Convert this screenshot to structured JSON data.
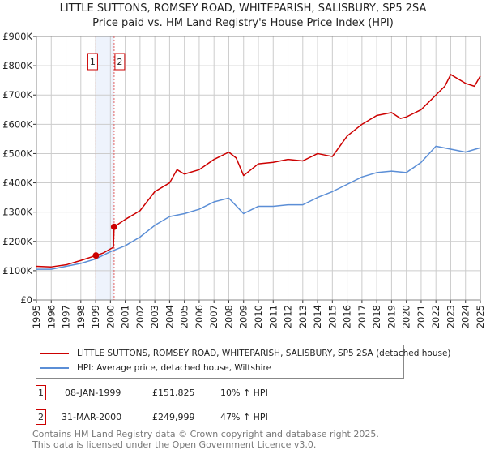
{
  "title": "LITTLE SUTTONS, ROMSEY ROAD, WHITEPARISH, SALISBURY, SP5 2SA",
  "subtitle": "Price paid vs. HM Land Registry's House Price Index (HPI)",
  "chart_data": {
    "type": "line",
    "title": "LITTLE SUTTONS, ROMSEY ROAD, WHITEPARISH, SALISBURY, SP5 2SA",
    "xlim": [
      1995,
      2025
    ],
    "ylim": [
      0,
      900000
    ],
    "x_ticks": [
      "1995",
      "1996",
      "1997",
      "1998",
      "1999",
      "2000",
      "2001",
      "2002",
      "2003",
      "2004",
      "2005",
      "2006",
      "2007",
      "2008",
      "2009",
      "2010",
      "2011",
      "2012",
      "2013",
      "2014",
      "2015",
      "2016",
      "2017",
      "2018",
      "2019",
      "2020",
      "2021",
      "2022",
      "2023",
      "2024",
      "2025"
    ],
    "y_ticks": [
      {
        "v": 0,
        "label": "£0"
      },
      {
        "v": 100000,
        "label": "£100K"
      },
      {
        "v": 200000,
        "label": "£200K"
      },
      {
        "v": 300000,
        "label": "£300K"
      },
      {
        "v": 400000,
        "label": "£400K"
      },
      {
        "v": 500000,
        "label": "£500K"
      },
      {
        "v": 600000,
        "label": "£600K"
      },
      {
        "v": 700000,
        "label": "£700K"
      },
      {
        "v": 800000,
        "label": "£800K"
      },
      {
        "v": 900000,
        "label": "£900K"
      }
    ],
    "grid": true,
    "series": [
      {
        "name": "LITTLE SUTTONS, ROMSEY ROAD, WHITEPARISH, SALISBURY, SP5 2SA (detached house)",
        "color": "#cc0000",
        "x": [
          1995,
          1996,
          1997,
          1998,
          1999.02,
          1999.5,
          2000.2,
          2000.25,
          2001,
          2002,
          2003,
          2004,
          2004.5,
          2005,
          2006,
          2007,
          2008,
          2008.5,
          2009,
          2010,
          2011,
          2012,
          2013,
          2014,
          2015,
          2016,
          2017,
          2018,
          2019,
          2019.6,
          2020,
          2021,
          2022,
          2022.6,
          2023,
          2023.5,
          2024,
          2024.6,
          2025
        ],
        "y": [
          115000,
          113000,
          120000,
          135000,
          151825,
          160000,
          180000,
          249999,
          275000,
          305000,
          370000,
          400000,
          445000,
          430000,
          445000,
          480000,
          505000,
          485000,
          425000,
          465000,
          470000,
          480000,
          475000,
          500000,
          490000,
          560000,
          600000,
          630000,
          640000,
          620000,
          625000,
          650000,
          700000,
          730000,
          770000,
          755000,
          740000,
          730000,
          765000
        ]
      },
      {
        "name": "HPI: Average price, detached house, Wiltshire",
        "color": "#5b8ed6",
        "x": [
          1995,
          1996,
          1997,
          1998,
          1999,
          2000,
          2001,
          2002,
          2003,
          2004,
          2005,
          2006,
          2007,
          2008,
          2009,
          2010,
          2011,
          2012,
          2013,
          2014,
          2015,
          2016,
          2017,
          2018,
          2019,
          2020,
          2021,
          2022,
          2023,
          2024,
          2025
        ],
        "y": [
          105000,
          105000,
          115000,
          125000,
          140000,
          165000,
          185000,
          215000,
          255000,
          285000,
          295000,
          310000,
          335000,
          348000,
          295000,
          320000,
          320000,
          325000,
          325000,
          350000,
          370000,
          395000,
          420000,
          435000,
          440000,
          435000,
          470000,
          525000,
          515000,
          505000,
          520000
        ]
      }
    ],
    "transactions": [
      {
        "label": "1",
        "x": 1999.02,
        "date": "08-JAN-1999",
        "price": "£151,825",
        "value": 151825,
        "hpi": "10% ↑ HPI"
      },
      {
        "label": "2",
        "x": 2000.25,
        "date": "31-MAR-2000",
        "price": "£249,999",
        "value": 249999,
        "hpi": "47% ↑ HPI"
      }
    ],
    "legend": "bottom"
  },
  "footer": [
    "Contains HM Land Registry data © Crown copyright and database right 2025.",
    "This data is licensed under the Open Government Licence v3.0."
  ]
}
